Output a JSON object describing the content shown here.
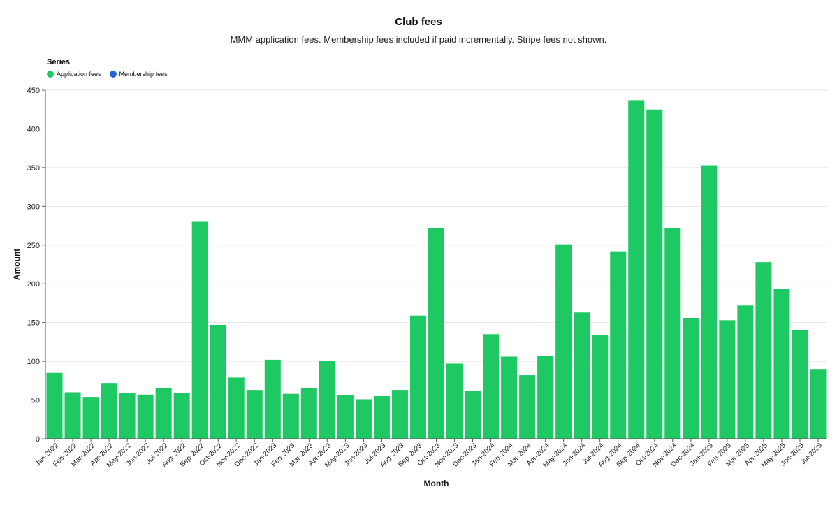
{
  "chart_data": {
    "type": "bar",
    "title": "Club fees",
    "subtitle": "MMM application fees. Membership fees included if paid incrementally. Stripe fees not shown.",
    "xlabel": "Month",
    "ylabel": "Amount",
    "ylim": [
      0,
      450
    ],
    "yticks": [
      0,
      50,
      100,
      150,
      200,
      250,
      300,
      350,
      400,
      450
    ],
    "grid": true,
    "legend": {
      "title": "Series",
      "placement": "top-left",
      "entries": [
        {
          "name": "Application fees",
          "color": "#1ec964"
        },
        {
          "name": "Membership fees",
          "color": "#2463d8"
        }
      ]
    },
    "categories": [
      "Jan-2022",
      "Feb-2022",
      "Mar-2022",
      "Apr-2022",
      "May-2022",
      "Jun-2022",
      "Jul-2022",
      "Aug-2022",
      "Sep-2022",
      "Oct-2022",
      "Nov-2022",
      "Dec-2022",
      "Jan-2023",
      "Feb-2023",
      "Mar-2023",
      "Apr-2023",
      "May-2023",
      "Jun-2023",
      "Jul-2023",
      "Aug-2023",
      "Sep-2023",
      "Oct-2023",
      "Nov-2023",
      "Dec-2023",
      "Jan-2024",
      "Feb-2024",
      "Mar-2024",
      "Apr-2024",
      "May-2024",
      "Jun-2024",
      "Jul-2024",
      "Aug-2024",
      "Sep-2024",
      "Oct-2024",
      "Nov-2024",
      "Dec-2024",
      "Jan-2025",
      "Feb-2025",
      "Mar-2025",
      "Apr-2025",
      "May-2025",
      "Jun-2025",
      "Jul-2025"
    ],
    "series": [
      {
        "name": "Application fees",
        "color": "#1ec964",
        "values": [
          85,
          60,
          54,
          72,
          59,
          57,
          65,
          59,
          280,
          147,
          79,
          63,
          102,
          58,
          65,
          101,
          56,
          51,
          55,
          63,
          159,
          272,
          97,
          62,
          135,
          106,
          82,
          107,
          251,
          163,
          134,
          242,
          437,
          425,
          272,
          156,
          353,
          153,
          172,
          228,
          193,
          140,
          90
        ]
      },
      {
        "name": "Membership fees",
        "color": "#2463d8",
        "values": [
          0,
          0,
          0,
          0,
          0,
          0,
          0,
          0,
          0,
          0,
          0,
          0,
          0,
          0,
          0,
          0,
          0,
          0,
          0,
          0,
          0,
          0,
          0,
          0,
          0,
          0,
          0,
          0,
          0,
          0,
          0,
          0,
          0,
          0,
          0,
          0,
          0,
          0,
          0,
          0,
          0,
          0,
          0
        ]
      }
    ]
  }
}
